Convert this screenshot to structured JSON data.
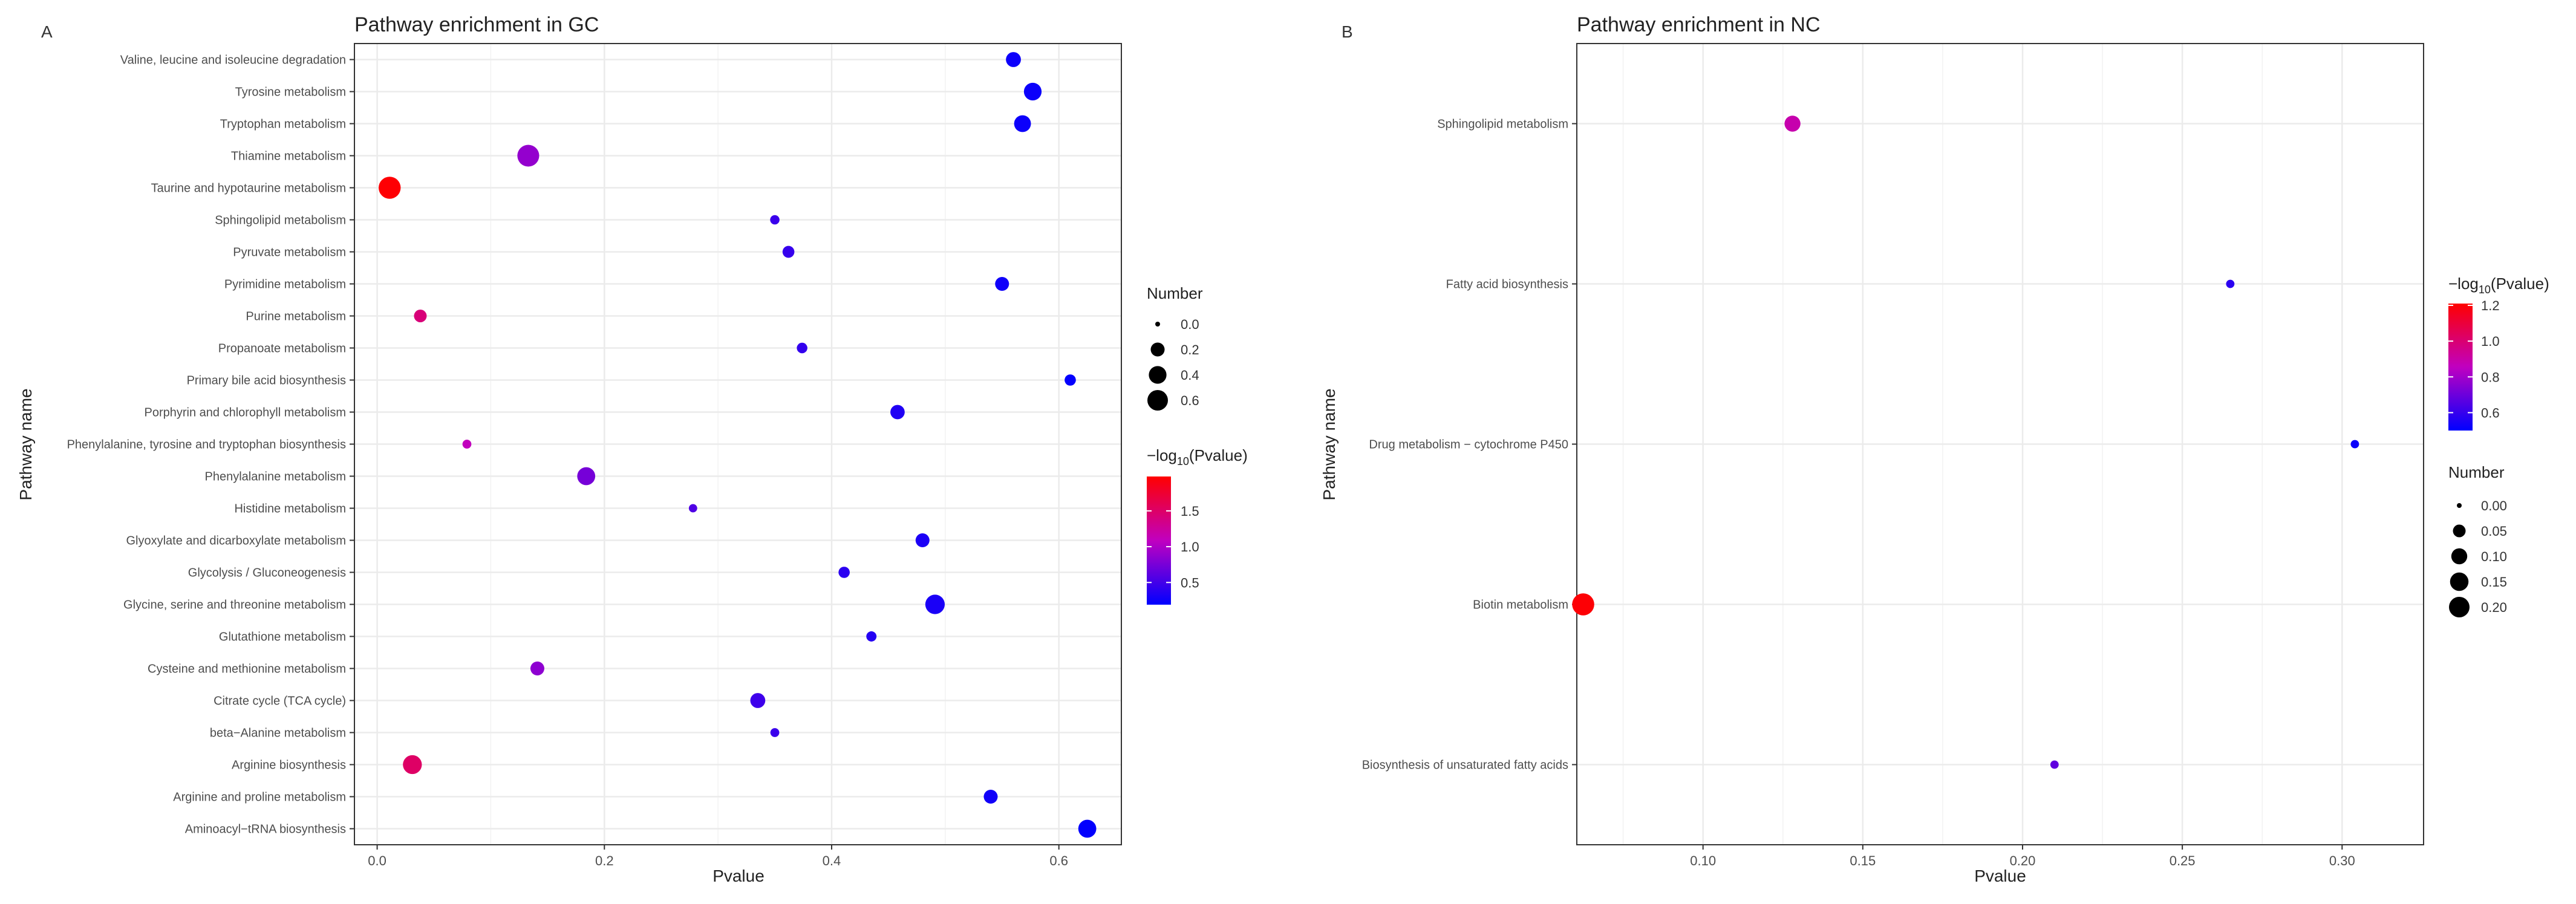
{
  "colors": {
    "high": "#ff0000",
    "mid": "#c000c0",
    "low": "#0000ff",
    "grid": "#ebebeb",
    "text": "#4d4d4d"
  },
  "chart_data": [
    {
      "type": "scatter",
      "panel": "A",
      "title": "Pathway enrichment in GC",
      "xlabel": "Pvalue",
      "ylabel": "Pathway name",
      "xlim": [
        -0.02,
        0.655
      ],
      "xticks": [
        0.0,
        0.2,
        0.4,
        0.6
      ],
      "xtick_labels": [
        "0.0",
        "0.2",
        "0.4",
        "0.6"
      ],
      "categories": [
        "Valine, leucine and isoleucine degradation",
        "Tyrosine metabolism",
        "Tryptophan metabolism",
        "Thiamine metabolism",
        "Taurine and hypotaurine metabolism",
        "Sphingolipid metabolism",
        "Pyruvate metabolism",
        "Pyrimidine metabolism",
        "Purine metabolism",
        "Propanoate metabolism",
        "Primary bile acid biosynthesis",
        "Porphyrin and chlorophyll metabolism",
        "Phenylalanine, tyrosine and tryptophan biosynthesis",
        "Phenylalanine metabolism",
        "Histidine metabolism",
        "Glyoxylate and dicarboxylate metabolism",
        "Glycolysis / Gluconeogenesis",
        "Glycine, serine and threonine metabolism",
        "Glutathione metabolism",
        "Cysteine and methionine metabolism",
        "Citrate cycle (TCA cycle)",
        "beta−Alanine metabolism",
        "Arginine biosynthesis",
        "Arginine and proline metabolism",
        "Aminoacyl−tRNA biosynthesis"
      ],
      "points": [
        {
          "x": 0.56,
          "number": 0.25,
          "logp": 0.25
        },
        {
          "x": 0.577,
          "number": 0.4,
          "logp": 0.24
        },
        {
          "x": 0.568,
          "number": 0.35,
          "logp": 0.245
        },
        {
          "x": 0.133,
          "number": 0.7,
          "logp": 0.88
        },
        {
          "x": 0.011,
          "number": 0.72,
          "logp": 1.96
        },
        {
          "x": 0.35,
          "number": 0.05,
          "logp": 0.46
        },
        {
          "x": 0.362,
          "number": 0.12,
          "logp": 0.44
        },
        {
          "x": 0.55,
          "number": 0.2,
          "logp": 0.26
        },
        {
          "x": 0.038,
          "number": 0.15,
          "logp": 1.42
        },
        {
          "x": 0.374,
          "number": 0.08,
          "logp": 0.43
        },
        {
          "x": 0.61,
          "number": 0.1,
          "logp": 0.21
        },
        {
          "x": 0.458,
          "number": 0.22,
          "logp": 0.34
        },
        {
          "x": 0.079,
          "number": 0.04,
          "logp": 1.1
        },
        {
          "x": 0.184,
          "number": 0.42,
          "logp": 0.74
        },
        {
          "x": 0.278,
          "number": 0.03,
          "logp": 0.56
        },
        {
          "x": 0.48,
          "number": 0.2,
          "logp": 0.32
        },
        {
          "x": 0.411,
          "number": 0.1,
          "logp": 0.39
        },
        {
          "x": 0.491,
          "number": 0.52,
          "logp": 0.31
        },
        {
          "x": 0.435,
          "number": 0.07,
          "logp": 0.36
        },
        {
          "x": 0.141,
          "number": 0.2,
          "logp": 0.85
        },
        {
          "x": 0.335,
          "number": 0.25,
          "logp": 0.48
        },
        {
          "x": 0.35,
          "number": 0.04,
          "logp": 0.46
        },
        {
          "x": 0.031,
          "number": 0.48,
          "logp": 1.51
        },
        {
          "x": 0.54,
          "number": 0.2,
          "logp": 0.27
        },
        {
          "x": 0.625,
          "number": 0.42,
          "logp": 0.2
        }
      ],
      "legend_size": {
        "title": "Number",
        "labels": [
          "0.0",
          "0.2",
          "0.4",
          "0.6"
        ],
        "values": [
          0.0,
          0.2,
          0.4,
          0.6
        ]
      },
      "legend_color": {
        "title_prefix": "−log",
        "title_sub": "10",
        "title_suffix": "(Pvalue)",
        "labels": [
          "1.5",
          "1.0",
          "0.5"
        ],
        "values": [
          1.5,
          1.0,
          0.5
        ],
        "range": [
          0.19,
          1.98
        ]
      }
    },
    {
      "type": "scatter",
      "panel": "B",
      "title": "Pathway enrichment in NC",
      "xlabel": "Pvalue",
      "ylabel": "Pathway name",
      "xlim": [
        0.0605,
        0.3255
      ],
      "xticks": [
        0.1,
        0.15,
        0.2,
        0.25,
        0.3
      ],
      "xtick_labels": [
        "0.10",
        "0.15",
        "0.20",
        "0.25",
        "0.30"
      ],
      "categories": [
        "Sphingolipid metabolism",
        "Fatty acid biosynthesis",
        "Drug metabolism − cytochrome P450",
        "Biotin metabolism",
        "Biosynthesis of unsaturated fatty acids"
      ],
      "points": [
        {
          "x": 0.128,
          "number": 0.1,
          "logp": 0.89
        },
        {
          "x": 0.265,
          "number": 0.01,
          "logp": 0.58
        },
        {
          "x": 0.304,
          "number": 0.01,
          "logp": 0.52
        },
        {
          "x": 0.0625,
          "number": 0.24,
          "logp": 1.2
        },
        {
          "x": 0.21,
          "number": 0.01,
          "logp": 0.68
        }
      ],
      "legend_size": {
        "title": "Number",
        "labels": [
          "0.00",
          "0.05",
          "0.10",
          "0.15",
          "0.20"
        ],
        "values": [
          0.0,
          0.05,
          0.1,
          0.15,
          0.2
        ]
      },
      "legend_color": {
        "title_prefix": "−log",
        "title_sub": "10",
        "title_suffix": "(Pvalue)",
        "labels": [
          "1.2",
          "1.0",
          "0.8",
          "0.6"
        ],
        "values": [
          1.2,
          1.0,
          0.8,
          0.6
        ],
        "range": [
          0.5,
          1.21
        ]
      }
    }
  ]
}
